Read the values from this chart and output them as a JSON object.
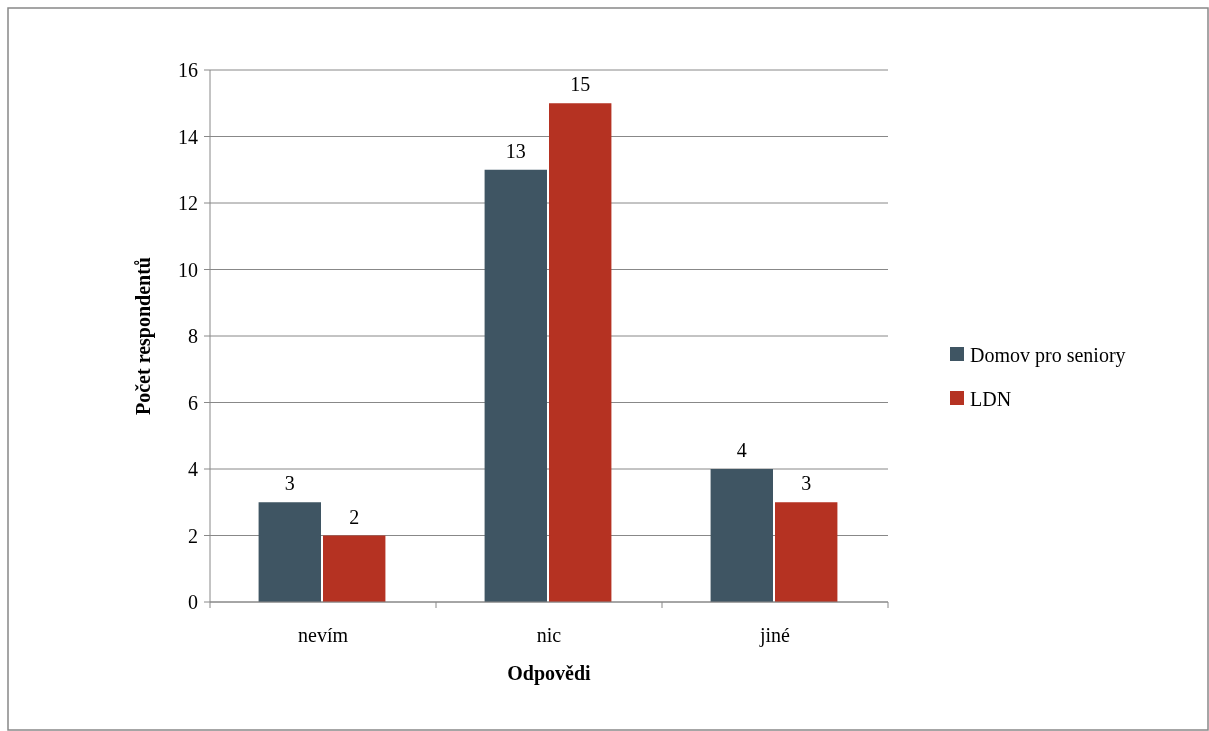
{
  "chart_data": {
    "type": "bar",
    "xlabel": "Odpovědi",
    "ylabel": "Počet respondentů",
    "categories": [
      "nevím",
      "nic",
      "jiné"
    ],
    "series": [
      {
        "name": "Domov pro seniory",
        "color": "#3f5563",
        "values": [
          3,
          13,
          4
        ]
      },
      {
        "name": "LDN",
        "color": "#b53222",
        "values": [
          2,
          15,
          3
        ]
      }
    ],
    "ylim": [
      0,
      16
    ],
    "yticks": [
      0,
      2,
      4,
      6,
      8,
      10,
      12,
      14,
      16
    ],
    "grid": "y",
    "legend": "right",
    "data_labels": true
  }
}
